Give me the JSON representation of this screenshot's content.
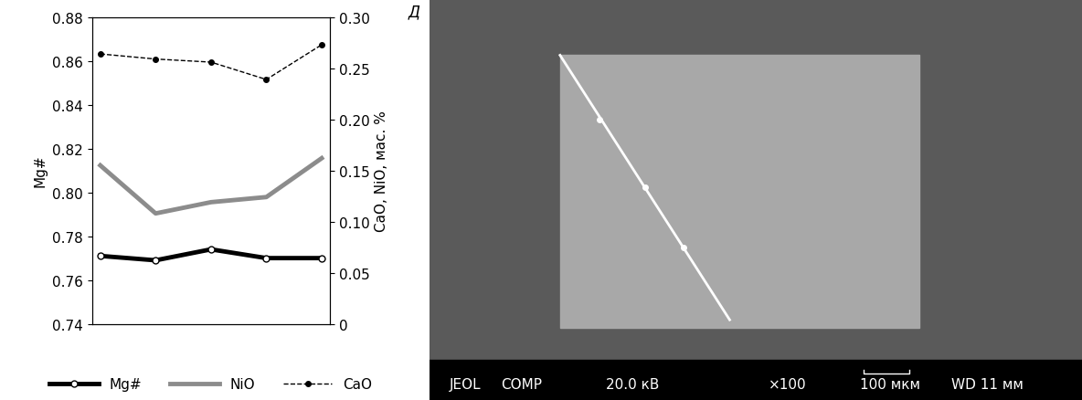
{
  "chart_data": {
    "type": "line",
    "categories": [
      null,
      null,
      null,
      null,
      null
    ],
    "y_label": "Mg#",
    "y2_label": "CaO, NiO, мас. %",
    "ylim": [
      0.74,
      0.88
    ],
    "yticks": [
      0.74,
      0.76,
      0.78,
      {
        "value": 0.8,
        "label": "0.80"
      },
      0.82,
      0.84,
      0.86,
      0.88
    ],
    "y2lim": [
      0,
      0.3
    ],
    "y2ticks": [
      0,
      0.05,
      {
        "value": 0.1,
        "label": "0.10"
      },
      0.15,
      {
        "value": 0.2,
        "label": "0.20"
      },
      0.25,
      {
        "value": 0.3,
        "label": "0.30"
      }
    ],
    "tick_labels": "y",
    "grid": false,
    "legend": "lower center",
    "series": [
      {
        "name": "Mg#",
        "color": "#000000",
        "marker": "open_circle",
        "line_style": "solid",
        "values": [
          0.771,
          0.769,
          0.774,
          0.77,
          0.77
        ]
      },
      {
        "name": "NiO",
        "color": "#8c8c8c",
        "marker": "none",
        "line_style": "solid",
        "axis": "y2",
        "values": [
          0.155,
          0.108,
          0.119,
          0.124,
          0.162
        ]
      },
      {
        "name": "CaO",
        "color": "#000000",
        "marker": "circle",
        "line_style": "dashed",
        "axis": "y2",
        "values": [
          0.264,
          0.259,
          0.256,
          0.239,
          0.273
        ]
      }
    ]
  },
  "image_panel": {
    "panel_label": "Д",
    "info_bar": [
      "JEOL",
      "COMP",
      "20.0 кВ",
      "×100",
      "100 мкм",
      "WD 11 мм"
    ]
  }
}
